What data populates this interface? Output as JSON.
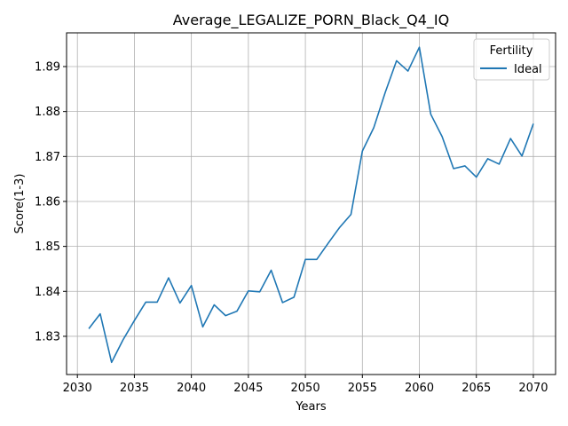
{
  "chart_data": {
    "type": "line",
    "title": "Average_LEGALIZE_PORN_Black_Q4_IQ",
    "xlabel": "Years",
    "ylabel": "Score(1-3)",
    "xlim": [
      2029.05,
      2071.95
    ],
    "ylim": [
      1.8215,
      1.8975
    ],
    "xticks": [
      2030,
      2035,
      2040,
      2045,
      2050,
      2055,
      2060,
      2065,
      2070
    ],
    "yticks": [
      1.83,
      1.84,
      1.85,
      1.86,
      1.87,
      1.88,
      1.89
    ],
    "ytick_labels": [
      "1.83",
      "1.84",
      "1.85",
      "1.86",
      "1.87",
      "1.88",
      "1.89"
    ],
    "grid": true,
    "legend": {
      "title": "Fertility",
      "placement": "top-right"
    },
    "series": [
      {
        "name": "Ideal",
        "color": "#1f77b4",
        "x": [
          2031,
          2032,
          2033,
          2034,
          2035,
          2036,
          2037,
          2038,
          2039,
          2040,
          2041,
          2042,
          2043,
          2044,
          2045,
          2046,
          2047,
          2048,
          2049,
          2050,
          2051,
          2052,
          2053,
          2054,
          2055,
          2056,
          2057,
          2058,
          2059,
          2060,
          2061,
          2062,
          2063,
          2064,
          2065,
          2066,
          2067,
          2068,
          2069,
          2070
        ],
        "values": [
          1.8317,
          1.835,
          1.8242,
          1.8292,
          1.8335,
          1.8376,
          1.8376,
          1.843,
          1.8374,
          1.8413,
          1.8321,
          1.837,
          1.8346,
          1.8356,
          1.8401,
          1.8399,
          1.8447,
          1.8375,
          1.8387,
          1.8471,
          1.8471,
          1.8507,
          1.8542,
          1.8571,
          1.8712,
          1.8764,
          1.8842,
          1.8913,
          1.889,
          1.8943,
          1.8794,
          1.8744,
          1.8673,
          1.8679,
          1.8654,
          1.8695,
          1.8683,
          1.874,
          1.8701,
          1.8773
        ]
      }
    ]
  }
}
